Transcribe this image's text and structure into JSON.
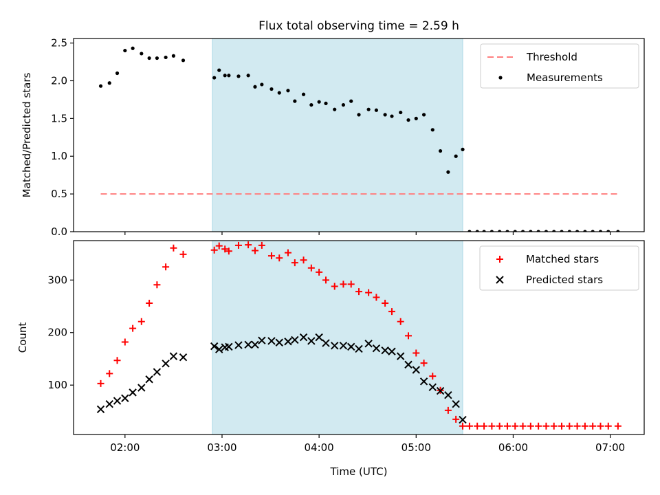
{
  "title": "Flux total observing time = 2.59 h",
  "colors": {
    "threshold": "#ff7f7f",
    "measurement": "#000000",
    "matched": "#ff0000",
    "predicted": "#000000",
    "shade": "#add8e6"
  },
  "chart_data": [
    {
      "type": "scatter",
      "ylabel": "Matched/Predicted stars",
      "xlabel": "",
      "xlim": [
        1.47,
        7.35
      ],
      "ylim": [
        0,
        2.56
      ],
      "yticks": [
        0,
        0.5,
        1.0,
        1.5,
        2.0,
        2.5
      ],
      "ytick_labels": [
        "0.0",
        "0.5",
        "1.0",
        "1.5",
        "2.0",
        "2.5"
      ],
      "shaded_span": [
        2.9,
        5.48
      ],
      "threshold": {
        "label": "Threshold",
        "value": 0.5,
        "x_range": [
          1.75,
          7.1
        ]
      },
      "legend": [
        "Threshold",
        "Measurements"
      ],
      "series": [
        {
          "name": "Measurements",
          "x": [
            1.75,
            1.84,
            1.92,
            2.0,
            2.08,
            2.17,
            2.25,
            2.33,
            2.42,
            2.5,
            2.6,
            2.92,
            2.97,
            3.03,
            3.07,
            3.17,
            3.27,
            3.34,
            3.41,
            3.51,
            3.59,
            3.68,
            3.75,
            3.84,
            3.92,
            4.0,
            4.07,
            4.16,
            4.25,
            4.33,
            4.41,
            4.51,
            4.59,
            4.68,
            4.75,
            4.84,
            4.92,
            5.0,
            5.08,
            5.17,
            5.25,
            5.33,
            5.41,
            5.48,
            5.55,
            5.63,
            5.7,
            5.78,
            5.86,
            5.94,
            6.02,
            6.1,
            6.18,
            6.26,
            6.34,
            6.42,
            6.5,
            6.58,
            6.66,
            6.74,
            6.82,
            6.9,
            6.98,
            7.08
          ],
          "values": [
            1.93,
            1.97,
            2.1,
            2.4,
            2.43,
            2.36,
            2.3,
            2.3,
            2.31,
            2.33,
            2.27,
            2.04,
            2.14,
            2.07,
            2.07,
            2.06,
            2.07,
            1.92,
            1.95,
            1.89,
            1.84,
            1.87,
            1.73,
            1.82,
            1.68,
            1.72,
            1.7,
            1.62,
            1.68,
            1.73,
            1.55,
            1.62,
            1.61,
            1.55,
            1.53,
            1.58,
            1.48,
            1.5,
            1.55,
            1.35,
            1.07,
            0.79,
            1.0,
            1.09,
            0,
            0,
            0,
            0,
            0,
            0,
            0,
            0,
            0,
            0,
            0,
            0,
            0,
            0,
            0,
            0,
            0,
            0,
            0,
            0
          ]
        }
      ]
    },
    {
      "type": "scatter",
      "xlabel": "Time (UTC)",
      "ylabel": "Count",
      "xlim": [
        1.47,
        7.35
      ],
      "ylim": [
        6,
        375
      ],
      "xticks": [
        2,
        3,
        4,
        5,
        6,
        7
      ],
      "xtick_labels": [
        "02:00",
        "03:00",
        "04:00",
        "05:00",
        "06:00",
        "07:00"
      ],
      "yticks": [
        100,
        200,
        300
      ],
      "ytick_labels": [
        "100",
        "200",
        "300"
      ],
      "shaded_span": [
        2.9,
        5.48
      ],
      "legend": [
        "Matched stars",
        "Predicted stars"
      ],
      "series": [
        {
          "name": "Matched stars",
          "x": [
            1.75,
            1.84,
            1.92,
            2.0,
            2.08,
            2.17,
            2.25,
            2.33,
            2.42,
            2.5,
            2.6,
            2.92,
            2.97,
            3.03,
            3.07,
            3.17,
            3.27,
            3.34,
            3.41,
            3.51,
            3.59,
            3.68,
            3.75,
            3.84,
            3.92,
            4.0,
            4.07,
            4.16,
            4.25,
            4.33,
            4.41,
            4.51,
            4.59,
            4.68,
            4.75,
            4.84,
            4.92,
            5.0,
            5.08,
            5.17,
            5.25,
            5.33,
            5.41,
            5.48,
            5.55,
            5.63,
            5.7,
            5.78,
            5.86,
            5.94,
            6.02,
            6.1,
            6.18,
            6.26,
            6.34,
            6.42,
            6.5,
            6.58,
            6.66,
            6.74,
            6.82,
            6.9,
            6.98,
            7.08
          ],
          "values": [
            103,
            122,
            147,
            182,
            208,
            221,
            256,
            291,
            325,
            361,
            349,
            357,
            365,
            359,
            355,
            366,
            367,
            356,
            366,
            346,
            342,
            352,
            333,
            338,
            323,
            315,
            300,
            288,
            292,
            292,
            278,
            276,
            267,
            256,
            240,
            221,
            194,
            161,
            142,
            117,
            90,
            52,
            35,
            22,
            22,
            22,
            22,
            22,
            22,
            22,
            22,
            22,
            22,
            22,
            22,
            22,
            22,
            22,
            22,
            22,
            22,
            22,
            22,
            22
          ]
        },
        {
          "name": "Predicted stars",
          "x": [
            1.75,
            1.84,
            1.92,
            2.0,
            2.08,
            2.17,
            2.25,
            2.33,
            2.42,
            2.5,
            2.6,
            2.92,
            2.97,
            3.03,
            3.07,
            3.17,
            3.27,
            3.34,
            3.41,
            3.51,
            3.59,
            3.68,
            3.75,
            3.84,
            3.92,
            4.0,
            4.07,
            4.16,
            4.25,
            4.33,
            4.41,
            4.51,
            4.59,
            4.68,
            4.75,
            4.84,
            4.92,
            5.0,
            5.08,
            5.17,
            5.25,
            5.33,
            5.41,
            5.48
          ],
          "values": [
            54,
            64,
            70,
            75,
            86,
            95,
            111,
            125,
            141,
            155,
            153,
            174,
            168,
            172,
            173,
            176,
            177,
            177,
            185,
            184,
            181,
            183,
            186,
            191,
            184,
            191,
            180,
            175,
            175,
            173,
            169,
            179,
            170,
            166,
            164,
            155,
            139,
            129,
            107,
            96,
            89,
            81,
            64,
            34
          ]
        }
      ]
    }
  ]
}
